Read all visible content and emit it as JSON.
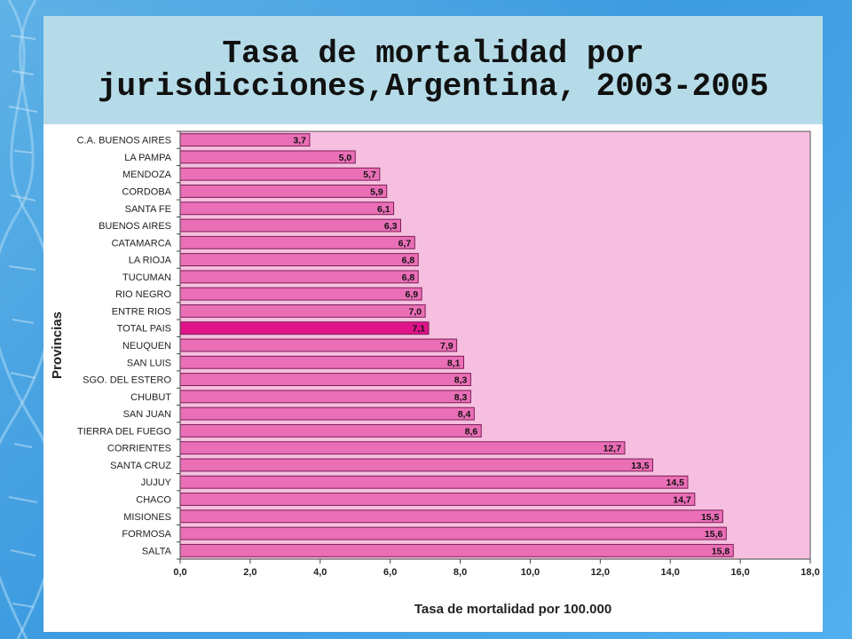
{
  "slide": {
    "title": "Tasa de mortalidad por jurisdicciones,Argentina, 2003-2005"
  },
  "colors": {
    "plot_background": "#f6bfe0",
    "bar": "#ea6fb7",
    "bar_highlight": "#e0148a",
    "bar_border": "#7a1e55",
    "title_band": "#b5dbe8"
  },
  "chart_data": {
    "type": "bar",
    "orientation": "horizontal",
    "categories": [
      "C.A. BUENOS AIRES",
      "LA PAMPA",
      "MENDOZA",
      "CORDOBA",
      "SANTA FE",
      "BUENOS AIRES",
      "CATAMARCA",
      "LA RIOJA",
      "TUCUMAN",
      "RIO NEGRO",
      "ENTRE RIOS",
      "TOTAL PAIS",
      "NEUQUEN",
      "SAN LUIS",
      "SGO. DEL ESTERO",
      "CHUBUT",
      "SAN JUAN",
      "TIERRA DEL FUEGO",
      "CORRIENTES",
      "SANTA CRUZ",
      "JUJUY",
      "CHACO",
      "MISIONES",
      "FORMOSA",
      "SALTA"
    ],
    "values": [
      3.7,
      5.0,
      5.7,
      5.9,
      6.1,
      6.3,
      6.7,
      6.8,
      6.8,
      6.9,
      7.0,
      7.1,
      7.9,
      8.1,
      8.3,
      8.3,
      8.4,
      8.6,
      12.7,
      13.5,
      14.5,
      14.7,
      15.5,
      15.6,
      15.8
    ],
    "value_labels": [
      "3,7",
      "5,0",
      "5,7",
      "5,9",
      "6,1",
      "6,3",
      "6,7",
      "6,8",
      "6,8",
      "6,9",
      "7,0",
      "7,1",
      "7,9",
      "8,1",
      "8,3",
      "8,3",
      "8,4",
      "8,6",
      "12,7",
      "13,5",
      "14,5",
      "14,7",
      "15,5",
      "15,6",
      "15,8"
    ],
    "highlight_category": "TOTAL PAIS",
    "xlabel": "Tasa de mortalidad por 100.000",
    "ylabel": "Provincias",
    "xlim": [
      0,
      18
    ],
    "xticks": [
      0,
      2,
      4,
      6,
      8,
      10,
      12,
      14,
      16,
      18
    ],
    "xtick_labels": [
      "0,0",
      "2,0",
      "4,0",
      "6,0",
      "8,0",
      "10,0",
      "12,0",
      "14,0",
      "16,0",
      "18,0"
    ],
    "grid": false,
    "legend": "none"
  }
}
